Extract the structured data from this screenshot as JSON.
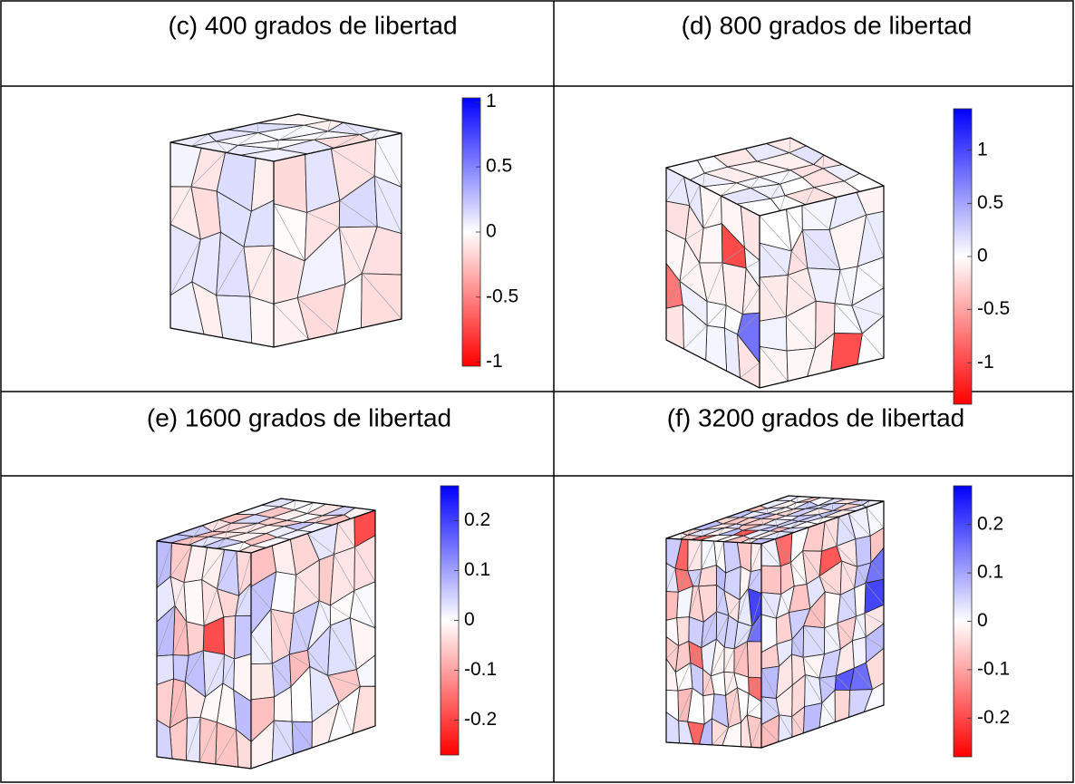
{
  "panels": [
    {
      "title": "(c) 400 grados de libertad",
      "colorbar": {
        "clim": [
          -1.03,
          1.03
        ],
        "ticks": [
          1,
          0.5,
          0,
          -0.5,
          -1
        ]
      }
    },
    {
      "title": "(d) 800 grados de libertad",
      "colorbar": {
        "clim": [
          -1.39,
          1.39
        ],
        "ticks": [
          1,
          0.5,
          0,
          -0.5,
          -1
        ]
      }
    },
    {
      "title": "(e) 1600 grados de libertad",
      "colorbar": {
        "clim": [
          -0.27,
          0.27
        ],
        "ticks": [
          0.2,
          0.1,
          0,
          -0.1,
          -0.2
        ]
      }
    },
    {
      "title": "(f)  3200 grados de libertad",
      "colorbar": {
        "clim": [
          -0.28,
          0.28
        ],
        "ticks": [
          0.2,
          0.1,
          0,
          -0.1,
          -0.2
        ]
      }
    }
  ]
}
